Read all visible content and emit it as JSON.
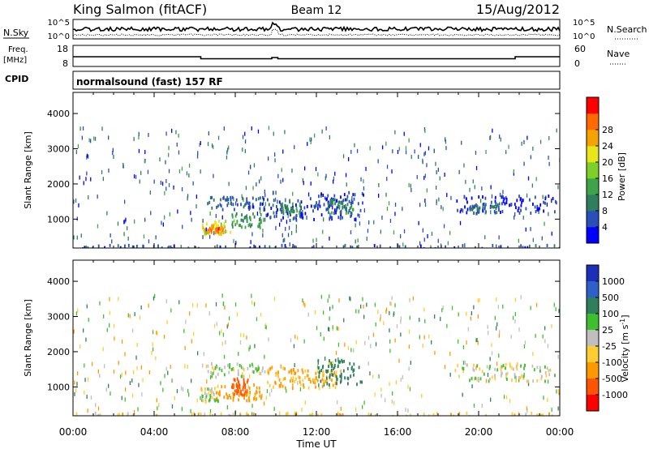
{
  "header": {
    "station": "King Salmon (fitACF)",
    "beam": "Beam 12",
    "date": "15/Aug/2012"
  },
  "noise_panel": {
    "left_label": "N.Sky",
    "right_label": "N.Search",
    "left_ticks": [
      "10^5",
      "10^0"
    ],
    "right_ticks": [
      "10^5",
      "10^0"
    ]
  },
  "freq_panel": {
    "left_label_line1": "Freq.",
    "left_label_line2": "[MHz]",
    "right_label": "Nave",
    "left_ticks": [
      "18",
      "8"
    ],
    "right_ticks": [
      "60",
      "0"
    ],
    "cpid_label": "CPID",
    "cpid_text": "normalsound (fast) 157 RF"
  },
  "colors": {
    "power_scale": [
      "#0000ff",
      "#2a4fb8",
      "#2f7f5e",
      "#3fa34a",
      "#7fcf2a",
      "#e6e61a",
      "#f4a300",
      "#ff6a00",
      "#ff0000"
    ],
    "velocity_scale": [
      "#1c2fb8",
      "#2f5fc8",
      "#2f7f5e",
      "#3fbf2f",
      "#bfbfbf",
      "#ffcc33",
      "#ff9900",
      "#ff5500",
      "#ff0000"
    ]
  },
  "chart_data": [
    {
      "type": "heatmap",
      "panel": "power",
      "quantity_label": "Power [dB]",
      "ylabel": "Slant Range [km]",
      "ylim": [
        180,
        4600
      ],
      "yticks": [
        "1000",
        "2000",
        "3000",
        "4000"
      ],
      "xlim": [
        0,
        24
      ],
      "colorbar_ticks": [
        "4",
        "8",
        "12",
        "16",
        "20",
        "24",
        "28"
      ],
      "regions": [
        {
          "t": [
            6.3,
            7.8
          ],
          "r": [
            600,
            1000
          ],
          "value": 20
        },
        {
          "t": [
            6.6,
            7.4
          ],
          "r": [
            650,
            800
          ],
          "value": 26
        },
        {
          "t": [
            7.8,
            9.3
          ],
          "r": [
            800,
            1200
          ],
          "value": 12
        },
        {
          "t": [
            6.6,
            9.5
          ],
          "r": [
            1300,
            1700
          ],
          "value": 6
        },
        {
          "t": [
            9.5,
            11.5
          ],
          "r": [
            1000,
            1600
          ],
          "value": 5
        },
        {
          "t": [
            10.2,
            11.2
          ],
          "r": [
            1200,
            1500
          ],
          "value": 10
        },
        {
          "t": [
            11.5,
            14.3
          ],
          "r": [
            1000,
            1800
          ],
          "value": 4
        },
        {
          "t": [
            12.5,
            13.8
          ],
          "r": [
            1200,
            1600
          ],
          "value": 9
        },
        {
          "t": [
            18.8,
            23.8
          ],
          "r": [
            1200,
            1700
          ],
          "value": 4
        },
        {
          "t": [
            19.5,
            21.0
          ],
          "r": [
            1200,
            1500
          ],
          "value": 8
        },
        {
          "t": [
            0.0,
            24.0
          ],
          "r": [
            200,
            300
          ],
          "value": 5
        }
      ]
    },
    {
      "type": "heatmap",
      "panel": "velocity",
      "quantity_label": "Velocity [m s^-1]",
      "ylabel": "Slant Range [km]",
      "ylim": [
        180,
        4600
      ],
      "yticks": [
        "1000",
        "2000",
        "3000",
        "4000"
      ],
      "xlim": [
        0,
        24
      ],
      "xticks": [
        "00:00",
        "04:00",
        "08:00",
        "12:00",
        "16:00",
        "20:00",
        "00:00"
      ],
      "xlabel": "Time UT",
      "colorbar_ticks": [
        "1000",
        "500",
        "100",
        "25",
        "-25",
        "-100",
        "-500",
        "-1000"
      ],
      "regions": [
        {
          "t": [
            6.3,
            7.2
          ],
          "r": [
            600,
            1000
          ],
          "value": 0
        },
        {
          "t": [
            7.0,
            9.3
          ],
          "r": [
            650,
            1100
          ],
          "value": -150
        },
        {
          "t": [
            7.8,
            8.6
          ],
          "r": [
            800,
            1300
          ],
          "value": -700
        },
        {
          "t": [
            6.6,
            9.5
          ],
          "r": [
            1300,
            1700
          ],
          "value": 10
        },
        {
          "t": [
            9.5,
            11.5
          ],
          "r": [
            1000,
            1600
          ],
          "value": -120
        },
        {
          "t": [
            11.5,
            13.0
          ],
          "r": [
            1000,
            1500
          ],
          "value": -100
        },
        {
          "t": [
            12.0,
            14.3
          ],
          "r": [
            1100,
            1800
          ],
          "value": 200
        },
        {
          "t": [
            18.8,
            23.8
          ],
          "r": [
            1200,
            1700
          ],
          "value": 0
        },
        {
          "t": [
            0.0,
            24.0
          ],
          "r": [
            200,
            300
          ],
          "value": -60
        }
      ]
    }
  ]
}
